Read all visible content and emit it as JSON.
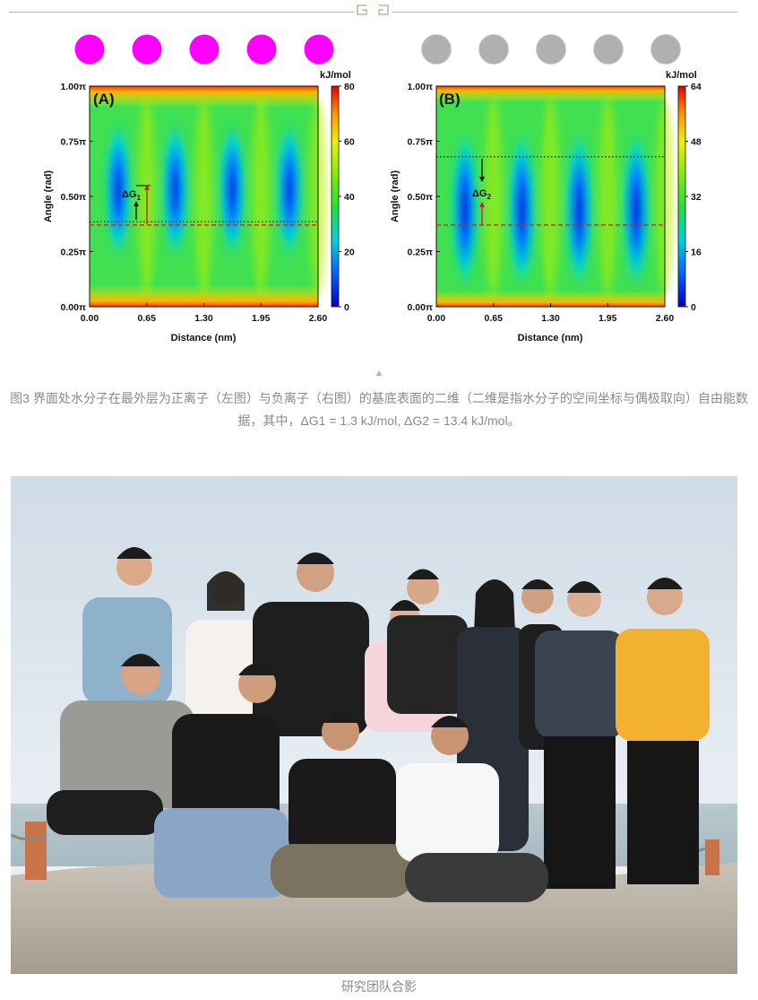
{
  "caption": {
    "figure": "图3 界面处水分子在最外层为正离子（左图）与负离子（右图）的基底表面的二维（二维是指水分子的空间坐标与偶极取向）自由能数据，其中，ΔG1 = 1.3 kJ/mol, ΔG2 = 13.4 kJ/mol。",
    "photo": "研究团队合影",
    "arrow": "▲"
  },
  "colors": {
    "cation": "#ff00ff",
    "anion": "#b0b0b0",
    "ornament": "#c9b49a",
    "caption_text": "#8a8a8a"
  },
  "ions": {
    "left_count": 5,
    "right_count": 5
  },
  "chart_data": [
    {
      "type": "heatmap",
      "panel_label": "(A)",
      "xlabel": "Distance (nm)",
      "ylabel": "Angle (rad)",
      "x_ticks": [
        "0.00",
        "0.65",
        "1.30",
        "1.95",
        "2.60"
      ],
      "y_ticks": [
        "0.00π",
        "0.25π",
        "0.50π",
        "0.75π",
        "1.00π"
      ],
      "xlim": [
        0,
        2.6
      ],
      "ylim": [
        0,
        1.0
      ],
      "colorbar": {
        "label": "kJ/mol",
        "ticks": [
          "0",
          "20",
          "40",
          "60",
          "80"
        ],
        "range": [
          0,
          80
        ]
      },
      "minima_x": [
        0.325,
        0.975,
        1.625,
        2.275
      ],
      "dotted_line_y": 0.385,
      "dashed_line_y": 0.37,
      "annotation": "ΔG",
      "annotation_sub": "1"
    },
    {
      "type": "heatmap",
      "panel_label": "(B)",
      "xlabel": "Distance (nm)",
      "ylabel": "Angle (rad)",
      "x_ticks": [
        "0.00",
        "0.65",
        "1.30",
        "1.95",
        "2.60"
      ],
      "y_ticks": [
        "0.00π",
        "0.25π",
        "0.50π",
        "0.75π",
        "1.00π"
      ],
      "xlim": [
        0,
        2.6
      ],
      "ylim": [
        0,
        1.0
      ],
      "colorbar": {
        "label": "kJ/mol",
        "ticks": [
          "0",
          "16",
          "32",
          "48",
          "64"
        ],
        "range": [
          0,
          64
        ]
      },
      "minima_x": [
        0.325,
        0.975,
        1.625,
        2.275
      ],
      "dotted_line_y": 0.68,
      "dashed_line_y": 0.37,
      "annotation": "ΔG",
      "annotation_sub": "2"
    }
  ]
}
